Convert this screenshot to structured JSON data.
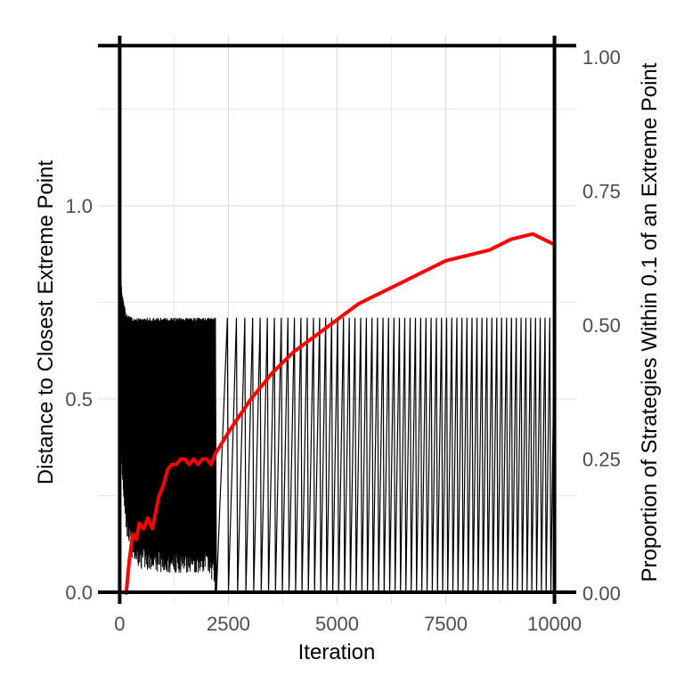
{
  "chart_data": {
    "type": "line",
    "xlabel": "Iteration",
    "ylabel": "Distance to Closest Extreme Point",
    "ylabel_right": "Proportion of Strategies Within 0.1 of an Extreme Point",
    "xlim": [
      -500,
      10500
    ],
    "ylim": [
      -0.03,
      1.44
    ],
    "ylim_right": [
      -0.02,
      1.04
    ],
    "x_ticks": [
      0,
      2500,
      5000,
      7500,
      10000
    ],
    "x_tick_labels": [
      "0",
      "2500",
      "5000",
      "7500",
      "10000"
    ],
    "y_ticks": [
      0.0,
      0.5,
      1.0
    ],
    "y_tick_labels": [
      "0.0",
      "0.5",
      "1.0"
    ],
    "y_ticks_right": [
      0.0,
      0.25,
      0.5,
      0.75,
      1.0
    ],
    "y_tick_labels_right": [
      "0.00",
      "0.25",
      "0.50",
      "0.75",
      "1.00"
    ],
    "reference_lines": {
      "hlines_left_axis": [
        0.0,
        1.414
      ],
      "vlines": [
        0,
        10000
      ]
    },
    "grid": true,
    "colors": {
      "distance": "#000000",
      "proportion": "#ff0000",
      "axis_right_title": "#ff0000",
      "grid": "#d9d9d9"
    },
    "series": [
      {
        "axis": "left",
        "color": "#000000",
        "description_points": {
          "x": [
            0,
            50,
            150,
            300,
            500,
            1000,
            1500,
            2000,
            2200,
            3000,
            5000,
            7500,
            10000
          ],
          "y_upper": [
            0.88,
            0.78,
            0.72,
            0.71,
            0.71,
            0.71,
            0.71,
            0.71,
            0.71,
            0.71,
            0.71,
            0.71,
            0.71
          ],
          "y_lower": [
            0.5,
            0.3,
            0.15,
            0.08,
            0.06,
            0.05,
            0.05,
            0.05,
            0.02,
            0.0,
            0.0,
            0.0,
            0.0
          ]
        },
        "oscillation_spike_count_after_2200": 60
      },
      {
        "axis": "right",
        "color": "#ff0000",
        "x": [
          150,
          220,
          300,
          380,
          450,
          550,
          650,
          750,
          900,
          1000,
          1100,
          1200,
          1300,
          1400,
          1500,
          1600,
          1700,
          1800,
          1900,
          2000,
          2100,
          2200,
          2500,
          3000,
          3500,
          4000,
          4500,
          5000,
          5500,
          6000,
          6500,
          7000,
          7500,
          8000,
          8500,
          9000,
          9500,
          10000
        ],
        "y": [
          0.0,
          0.06,
          0.11,
          0.1,
          0.13,
          0.12,
          0.14,
          0.12,
          0.18,
          0.2,
          0.23,
          0.24,
          0.24,
          0.25,
          0.25,
          0.24,
          0.25,
          0.24,
          0.25,
          0.25,
          0.24,
          0.26,
          0.3,
          0.36,
          0.41,
          0.45,
          0.48,
          0.51,
          0.54,
          0.56,
          0.58,
          0.6,
          0.62,
          0.63,
          0.64,
          0.66,
          0.67,
          0.65
        ]
      }
    ]
  }
}
